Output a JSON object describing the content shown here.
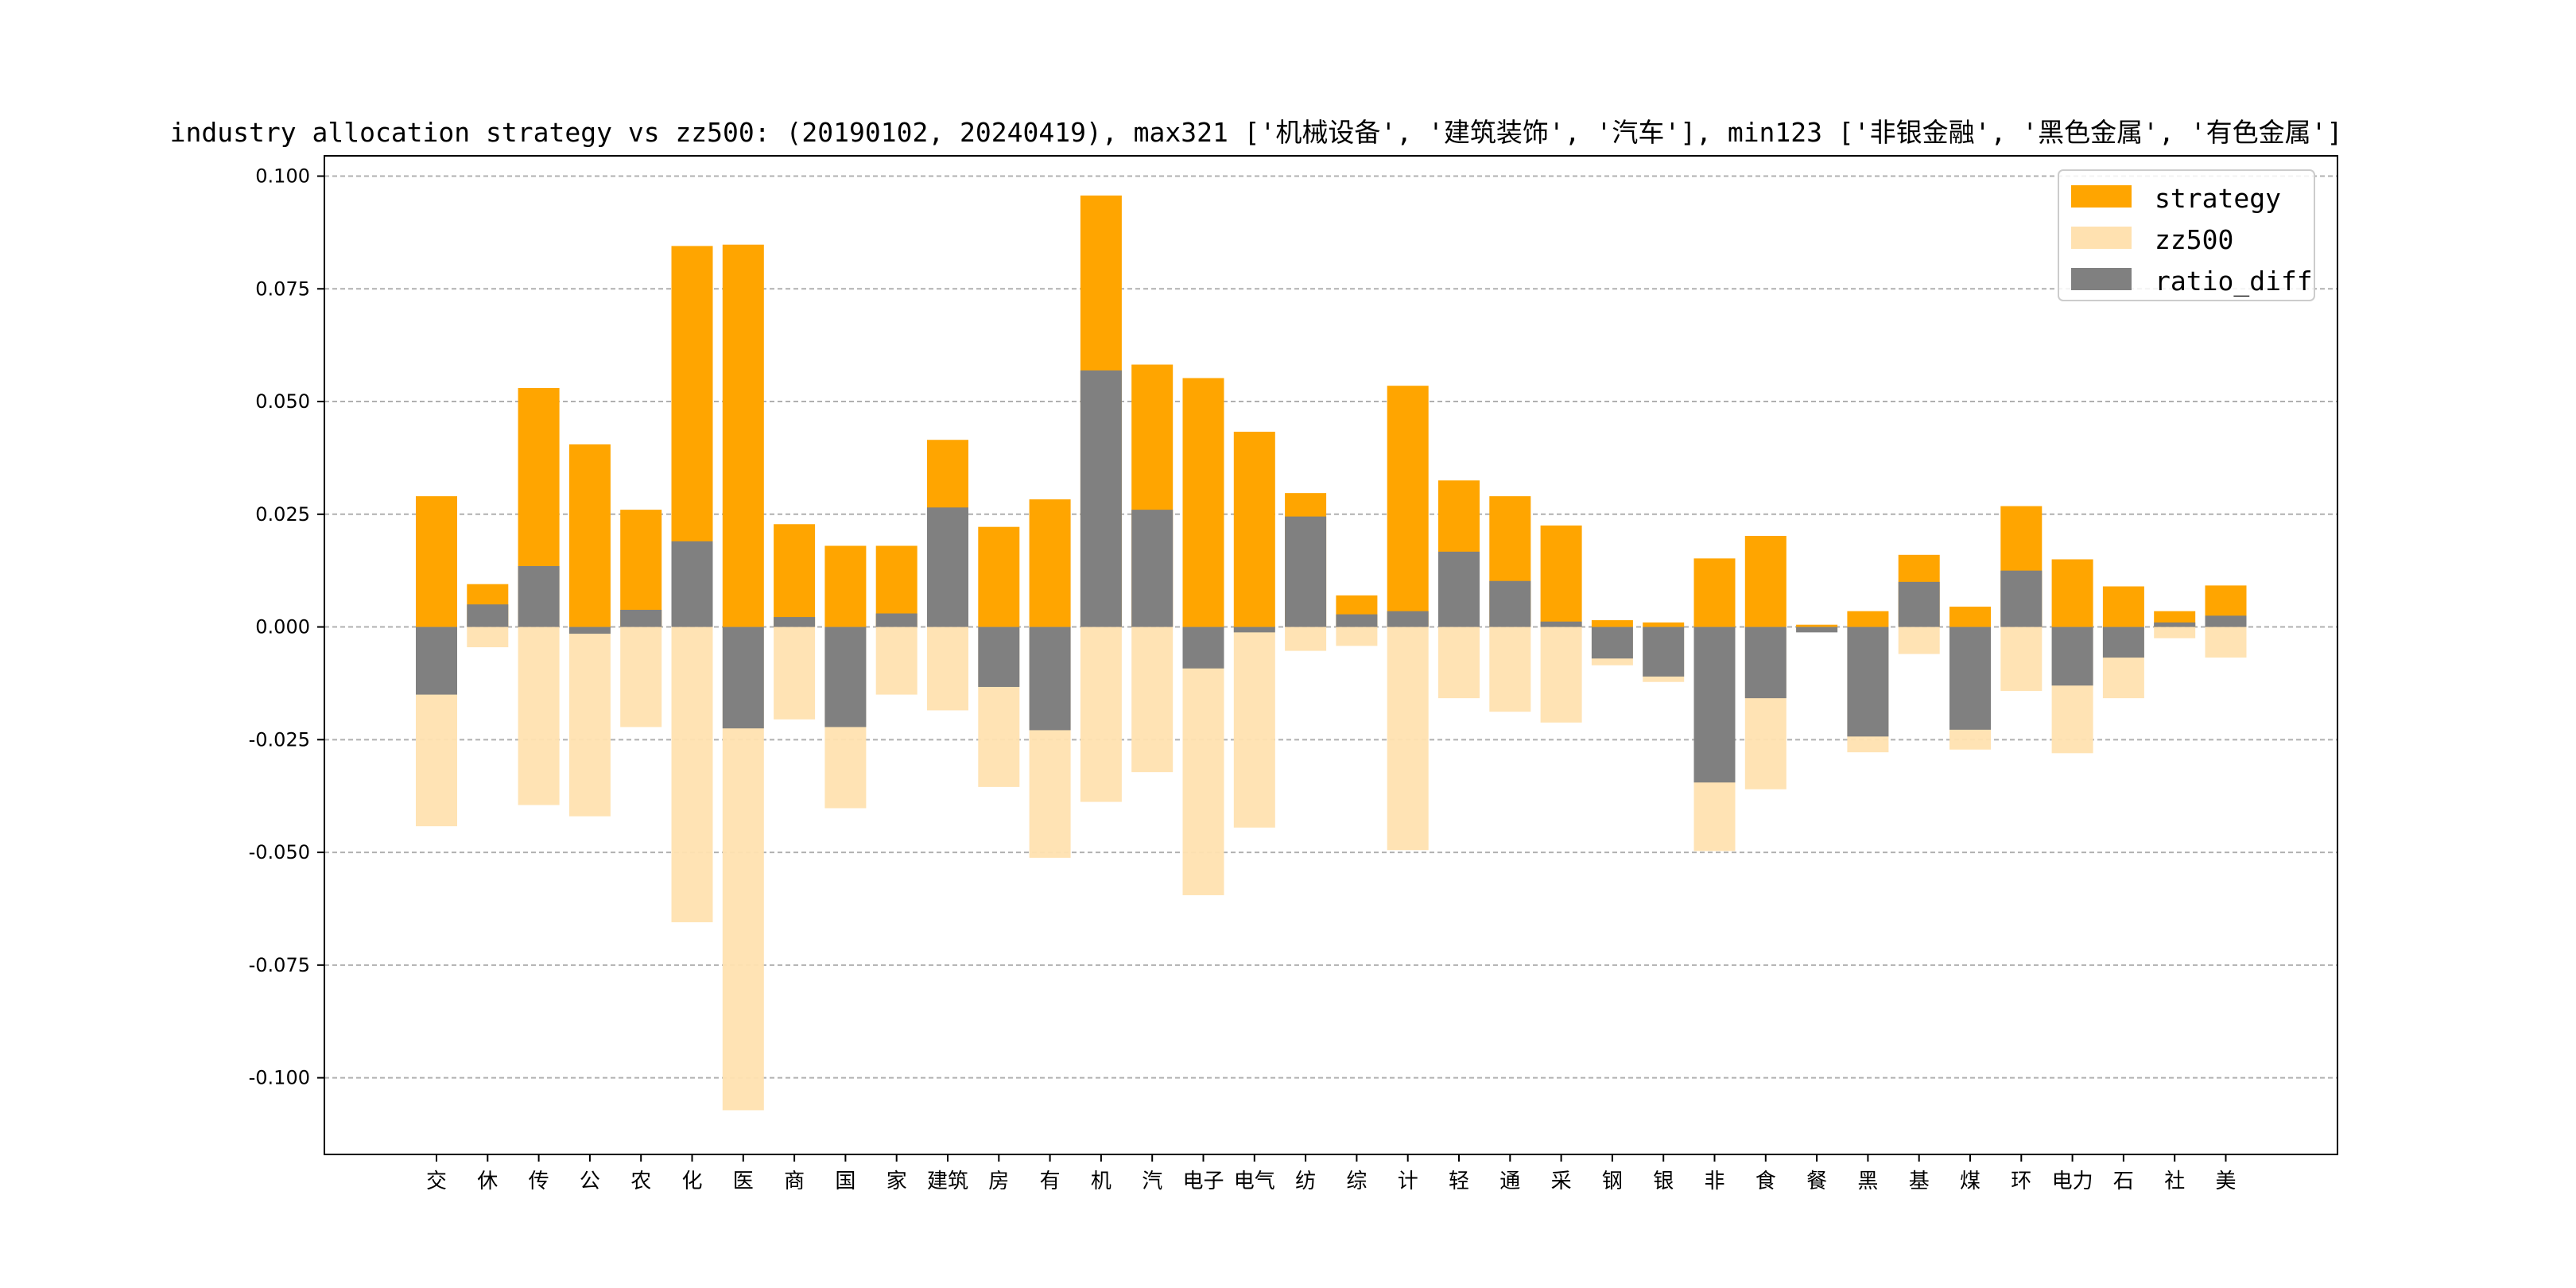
{
  "chart_data": {
    "type": "bar",
    "title": "industry allocation strategy vs zz500: (20190102, 20240419), max321 ['机械设备', '建筑装饰', '汽车'], min123 ['非银金融', '黑色金属', '有色金属']",
    "categories": [
      "交",
      "休",
      "传",
      "公",
      "农",
      "化",
      "医",
      "商",
      "国",
      "家",
      "建筑",
      "房",
      "有",
      "机",
      "汽",
      "电子",
      "电气",
      "纺",
      "综",
      "计",
      "轻",
      "通",
      "采",
      "钢",
      "银",
      "非",
      "食",
      "餐",
      "黑",
      "基",
      "煤",
      "环",
      "电力",
      "石",
      "社",
      "美"
    ],
    "series": [
      {
        "name": "strategy",
        "color": "#FFA500",
        "values": [
          0.029,
          0.0095,
          0.053,
          0.0405,
          0.026,
          0.0845,
          0.0848,
          0.0228,
          0.018,
          0.018,
          0.0415,
          0.0222,
          0.0283,
          0.0957,
          0.0582,
          0.0552,
          0.0433,
          0.0297,
          0.007,
          0.0535,
          0.0325,
          0.029,
          0.0225,
          0.0015,
          0.001,
          0.0152,
          0.0202,
          0.0005,
          0.0035,
          0.016,
          0.0045,
          0.0268,
          0.015,
          0.009,
          0.0035,
          0.0092
        ]
      },
      {
        "name": "zz500",
        "color": "#FFE1B0",
        "values": [
          -0.0442,
          -0.0045,
          -0.0395,
          -0.042,
          -0.0222,
          -0.0655,
          -0.1072,
          -0.0205,
          -0.0402,
          -0.015,
          -0.0185,
          -0.0355,
          -0.0512,
          -0.0388,
          -0.0322,
          -0.0595,
          -0.0445,
          -0.0053,
          -0.0042,
          -0.0495,
          -0.0158,
          -0.0188,
          -0.0212,
          -0.0085,
          -0.0122,
          -0.0497,
          -0.036,
          -0.001,
          -0.0278,
          -0.006,
          -0.0272,
          -0.0142,
          -0.028,
          -0.0158,
          -0.0025,
          -0.0068
        ]
      },
      {
        "name": "ratio_diff",
        "color": "#808080",
        "values": [
          -0.015,
          0.005,
          0.0135,
          -0.0015,
          0.0038,
          0.019,
          -0.0225,
          0.0022,
          -0.0222,
          0.003,
          0.0265,
          -0.0133,
          -0.0229,
          0.0569,
          0.026,
          -0.0092,
          -0.0012,
          0.0245,
          0.0028,
          0.0035,
          0.0167,
          0.0102,
          0.0012,
          -0.007,
          -0.011,
          -0.0345,
          -0.0158,
          -0.0012,
          -0.0243,
          0.01,
          -0.0228,
          0.0125,
          -0.013,
          -0.0068,
          0.001,
          0.0025
        ]
      }
    ],
    "xlabel": "",
    "ylabel": "",
    "ylim": [
      -0.117,
      0.1045
    ],
    "yticks": [
      "0.100",
      "0.075",
      "0.050",
      "0.025",
      "0.000",
      "-0.025",
      "-0.050",
      "-0.075",
      "-0.100"
    ],
    "ytick_values": [
      0.1,
      0.075,
      0.05,
      0.025,
      0.0,
      -0.025,
      -0.05,
      -0.075,
      -0.1
    ],
    "grid": "horizontal dashed",
    "legend_position": "top-right"
  }
}
